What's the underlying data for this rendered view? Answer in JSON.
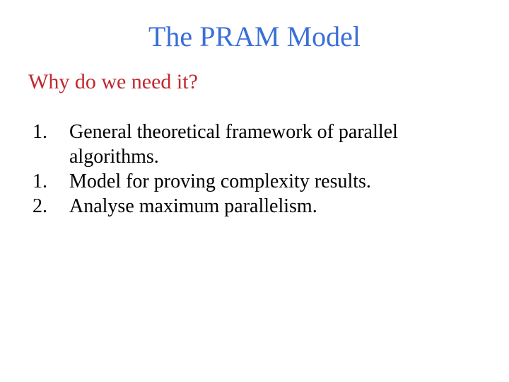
{
  "colors": {
    "title": "#3a6fd8",
    "subtitle": "#c0282d",
    "body": "#000000",
    "background": "#ffffff"
  },
  "typography": {
    "family": "Comic Sans MS",
    "title_fontsize": 40,
    "subtitle_fontsize": 30,
    "body_fontsize": 28
  },
  "title": "The PRAM Model",
  "subtitle": "Why do we need it?",
  "items": [
    {
      "num": "1.",
      "text": "General theoretical framework of parallel algorithms."
    },
    {
      "num": "1.",
      "text": "Model for proving complexity results."
    },
    {
      "num": "2.",
      "text": "Analyse maximum parallelism."
    }
  ]
}
